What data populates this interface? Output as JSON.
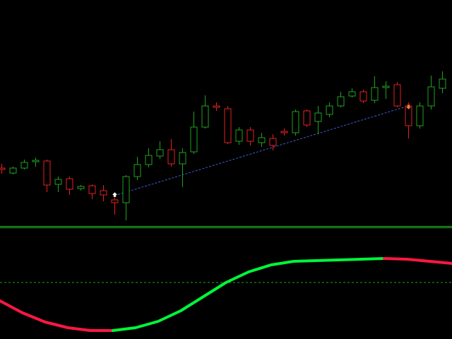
{
  "chart_data": [
    {
      "type": "candlestick",
      "ylim": [
        0,
        320
      ],
      "up_color": "#1fa21f",
      "down_color": "#e32020",
      "open": [
        82,
        75,
        82,
        91,
        92,
        59,
        67,
        53,
        57,
        50,
        37,
        33,
        70,
        87,
        99,
        108,
        88,
        105,
        140,
        170,
        166,
        120,
        136,
        118,
        124,
        134,
        132,
        163,
        148,
        158,
        170,
        184,
        190,
        178,
        196,
        200,
        170,
        142,
        170,
        195
      ],
      "high": [
        88,
        84,
        94,
        97,
        94,
        70,
        70,
        58,
        59,
        58,
        45,
        72,
        98,
        110,
        120,
        123,
        110,
        162,
        185,
        175,
        170,
        140,
        140,
        132,
        130,
        138,
        165,
        165,
        170,
        175,
        190,
        195,
        193,
        212,
        205,
        204,
        175,
        175,
        213,
        219
      ],
      "low": [
        74,
        73,
        80,
        84,
        48,
        48,
        44,
        50,
        38,
        35,
        16,
        8,
        65,
        83,
        95,
        84,
        55,
        102,
        138,
        163,
        116,
        115,
        114,
        112,
        107,
        128,
        128,
        140,
        130,
        154,
        168,
        182,
        174,
        174,
        180,
        168,
        124,
        138,
        165,
        188
      ],
      "close": [
        80,
        82,
        90,
        93,
        58,
        66,
        52,
        56,
        46,
        44,
        33,
        70,
        87,
        100,
        108,
        88,
        104,
        140,
        170,
        168,
        118,
        136,
        120,
        125,
        114,
        132,
        162,
        143,
        160,
        170,
        183,
        190,
        177,
        196,
        198,
        170,
        142,
        170,
        197,
        208
      ],
      "trendline": {
        "color": "#3a5fcd",
        "from": [
          10,
          43
        ],
        "to": [
          36,
          170
        ]
      },
      "arrows": [
        {
          "index": 10,
          "value": 43,
          "color": "#ffffff"
        },
        {
          "index": 36,
          "value": 170,
          "color": "#ff7a3a"
        }
      ]
    },
    {
      "type": "line",
      "ylim": [
        0,
        160
      ],
      "level": 80,
      "level_color": "#22a522",
      "series": [
        {
          "color": "#ff1744",
          "values": [
            54,
            37,
            24,
            16,
            12,
            12,
            null,
            null,
            null,
            null,
            null,
            null,
            null,
            null,
            null,
            null,
            null,
            null,
            null,
            null,
            null
          ]
        },
        {
          "color": "#00f53a",
          "values": [
            null,
            null,
            null,
            null,
            null,
            12,
            16,
            25,
            40,
            60,
            80,
            95,
            105,
            110,
            111,
            112,
            113,
            114,
            null,
            null,
            null
          ]
        },
        {
          "color": "#ff1744",
          "values": [
            null,
            null,
            null,
            null,
            null,
            null,
            null,
            null,
            null,
            null,
            null,
            null,
            null,
            null,
            null,
            null,
            null,
            114,
            113,
            110,
            107
          ]
        }
      ]
    }
  ]
}
